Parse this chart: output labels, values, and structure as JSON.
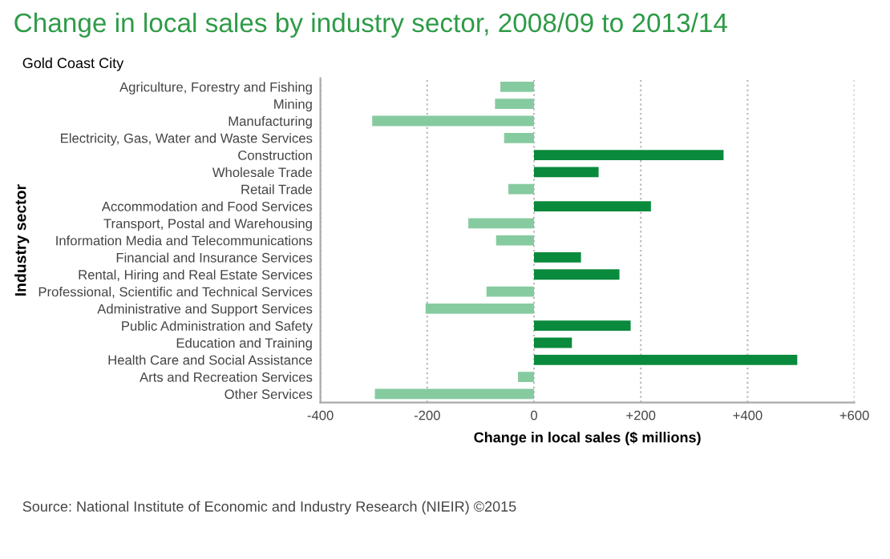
{
  "chart_data": {
    "type": "bar",
    "orientation": "horizontal",
    "title": "Change in local sales by industry sector, 2008/09 to 2013/14",
    "subtitle": "Gold Coast City",
    "xlabel": "Change in local sales ($ millions)",
    "ylabel": "Industry sector",
    "categories": [
      "Agriculture, Forestry and Fishing",
      "Mining",
      "Manufacturing",
      "Electricity, Gas, Water and Waste Services",
      "Construction",
      "Wholesale Trade",
      "Retail Trade",
      "Accommodation and Food Services",
      "Transport, Postal and Warehousing",
      "Information Media and Telecommunications",
      "Financial and Insurance Services",
      "Rental, Hiring and Real Estate Services",
      "Professional, Scientific and Technical Services",
      "Administrative and Support Services",
      "Public Administration and Safety",
      "Education and Training",
      "Health Care and Social Assistance",
      "Arts and Recreation Services",
      "Other Services"
    ],
    "values": [
      -63,
      -73,
      -303,
      -56,
      355,
      121,
      -48,
      219,
      -123,
      -71,
      88,
      160,
      -89,
      -203,
      181,
      71,
      493,
      -30,
      -298
    ],
    "colors": [
      "#86cba0",
      "#86cba0",
      "#86cba0",
      "#86cba0",
      "#0a8a3c",
      "#0a8a3c",
      "#86cba0",
      "#0a8a3c",
      "#86cba0",
      "#86cba0",
      "#0a8a3c",
      "#0a8a3c",
      "#86cba0",
      "#86cba0",
      "#0a8a3c",
      "#0a8a3c",
      "#0a8a3c",
      "#86cba0",
      "#86cba0"
    ],
    "xlim": [
      -400,
      600
    ],
    "xticks": [
      {
        "value": -400,
        "label": "-400"
      },
      {
        "value": -200,
        "label": "-200"
      },
      0,
      {
        "value": 200,
        "label": "+200"
      },
      {
        "value": 400,
        "label": "+400"
      },
      {
        "value": 600,
        "label": "+600"
      }
    ],
    "grid": "x",
    "annotations": [
      "Source: National Institute of Economic and Industry Research (NIEIR) ©2015"
    ]
  }
}
